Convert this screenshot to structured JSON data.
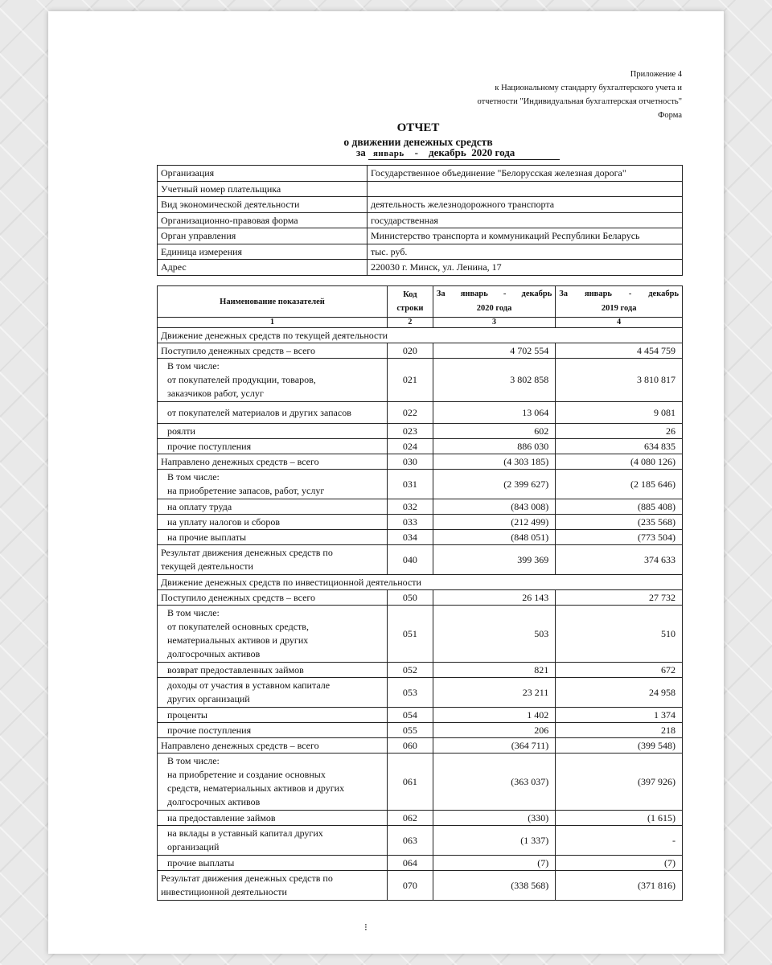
{
  "appendix": [
    "Приложение 4",
    "к Национальному стандарту бухгалтерского учета и",
    "отчетности \"Индивидуальная бухгалтерская отчетность\"",
    "Форма"
  ],
  "title": {
    "line1": "ОТЧЕТ",
    "line2": "о движении денежных средств",
    "za": "за",
    "month_from": "январь",
    "dash": "-",
    "month_to": "декабрь",
    "year": "2020 года"
  },
  "info": [
    {
      "label": "Организация",
      "value": "Государственное объединение \"Белорусская железная дорога\""
    },
    {
      "label": "Учетный номер плательщика",
      "value": ""
    },
    {
      "label": "Вид экономической деятельности",
      "value": "деятельность железнодорожного транспорта"
    },
    {
      "label": "Организационно-правовая форма",
      "value": "государственная"
    },
    {
      "label": "Орган управления",
      "value": "Министерство транспорта и коммуникаций Республики Беларусь"
    },
    {
      "label": "Единица измерения",
      "value": "тыс. руб."
    },
    {
      "label": "Адрес",
      "value": "220030 г. Минск, ул. Ленина, 17"
    }
  ],
  "table": {
    "headers": {
      "name": "Наименование показателей",
      "code": [
        "Код",
        "строки"
      ],
      "cur": [
        "За январь - декабрь",
        "2020 года"
      ],
      "prev": [
        "За январь - декабрь",
        "2019 года"
      ],
      "nums": [
        "1",
        "2",
        "3",
        "4"
      ]
    },
    "rows": [
      {
        "section": "Движение денежных средств по текущей деятельности"
      },
      {
        "label": [
          "Поступило денежных средств – всего"
        ],
        "code": "020",
        "cur": "4 702 554",
        "prev": "4 454 759"
      },
      {
        "label": [
          "В том числе:",
          "от покупателей продукции, товаров,",
          "заказчиков работ, услуг"
        ],
        "code": "021",
        "cur": "3 802 858",
        "prev": "3 810 817",
        "indent": true
      },
      {
        "label": [
          "от покупателей материалов и других запасов"
        ],
        "code": "022",
        "cur": "13 064",
        "prev": "9 081",
        "indent": true,
        "tall": true
      },
      {
        "label": [
          "роялти"
        ],
        "code": "023",
        "cur": "602",
        "prev": "26",
        "indent": true
      },
      {
        "label": [
          "прочие поступления"
        ],
        "code": "024",
        "cur": "886 030",
        "prev": "634 835",
        "indent": true
      },
      {
        "label": [
          "Направлено денежных средств – всего"
        ],
        "code": "030",
        "cur": "(4 303 185)",
        "prev": "(4 080 126)"
      },
      {
        "label": [
          "В том числе:",
          "на приобретение запасов, работ, услуг"
        ],
        "code": "031",
        "cur": "(2 399 627)",
        "prev": "(2 185 646)",
        "indent": true
      },
      {
        "label": [
          "на оплату труда"
        ],
        "code": "032",
        "cur": "(843 008)",
        "prev": "(885 408)",
        "indent": true
      },
      {
        "label": [
          "на уплату налогов и сборов"
        ],
        "code": "033",
        "cur": "(212 499)",
        "prev": "(235 568)",
        "indent": true
      },
      {
        "label": [
          "на прочие выплаты"
        ],
        "code": "034",
        "cur": "(848 051)",
        "prev": "(773 504)",
        "indent": true
      },
      {
        "label": [
          "Результат движения денежных средств по",
          "текущей деятельности"
        ],
        "code": "040",
        "cur": "399 369",
        "prev": "374 633"
      },
      {
        "section": "Движение денежных средств по инвестиционной деятельности"
      },
      {
        "label": [
          "Поступило денежных средств – всего"
        ],
        "code": "050",
        "cur": "26 143",
        "prev": "27 732"
      },
      {
        "label": [
          "В том числе:",
          "от покупателей основных средств,",
          "нематериальных активов и других",
          "долгосрочных активов"
        ],
        "code": "051",
        "cur": "503",
        "prev": "510",
        "indent": true
      },
      {
        "label": [
          "возврат предоставленных займов"
        ],
        "code": "052",
        "cur": "821",
        "prev": "672",
        "indent": true
      },
      {
        "label": [
          "доходы от участия в уставном капитале",
          "других организаций"
        ],
        "code": "053",
        "cur": "23 211",
        "prev": "24 958",
        "indent": true
      },
      {
        "label": [
          "проценты"
        ],
        "code": "054",
        "cur": "1 402",
        "prev": "1 374",
        "indent": true
      },
      {
        "label": [
          "прочие поступления"
        ],
        "code": "055",
        "cur": "206",
        "prev": "218",
        "indent": true
      },
      {
        "label": [
          "Направлено денежных средств – всего"
        ],
        "code": "060",
        "cur": "(364 711)",
        "prev": "(399 548)"
      },
      {
        "label": [
          "В том числе:",
          "на приобретение и создание основных",
          "средств, нематериальных активов и других",
          "долгосрочных активов"
        ],
        "code": "061",
        "cur": "(363 037)",
        "prev": "(397 926)",
        "indent": true
      },
      {
        "label": [
          "на предоставление займов"
        ],
        "code": "062",
        "cur": "(330)",
        "prev": "(1 615)",
        "indent": true
      },
      {
        "label": [
          "на вклады в уставный капитал других",
          "организаций"
        ],
        "code": "063",
        "cur": "(1 337)",
        "prev": "-",
        "indent": true
      },
      {
        "label": [
          "прочие выплаты"
        ],
        "code": "064",
        "cur": "(7)",
        "prev": "(7)",
        "indent": true
      },
      {
        "label": [
          "Результат движения денежных средств по",
          "инвестиционной деятельности"
        ],
        "code": "070",
        "cur": "(338 568)",
        "prev": "(371 816)"
      }
    ]
  }
}
